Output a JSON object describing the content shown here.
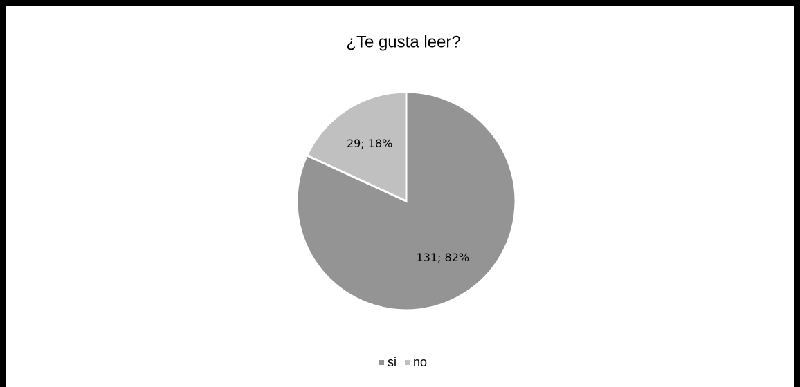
{
  "chart_data": {
    "type": "pie",
    "title": "¿Te gusta leer?",
    "categories": [
      "si",
      "no"
    ],
    "values": [
      131,
      29
    ],
    "value_labels": [
      "131; 82%",
      "29; 18%"
    ],
    "colors": [
      "#949494",
      "#c0c0c0"
    ],
    "legend": "bottom"
  }
}
